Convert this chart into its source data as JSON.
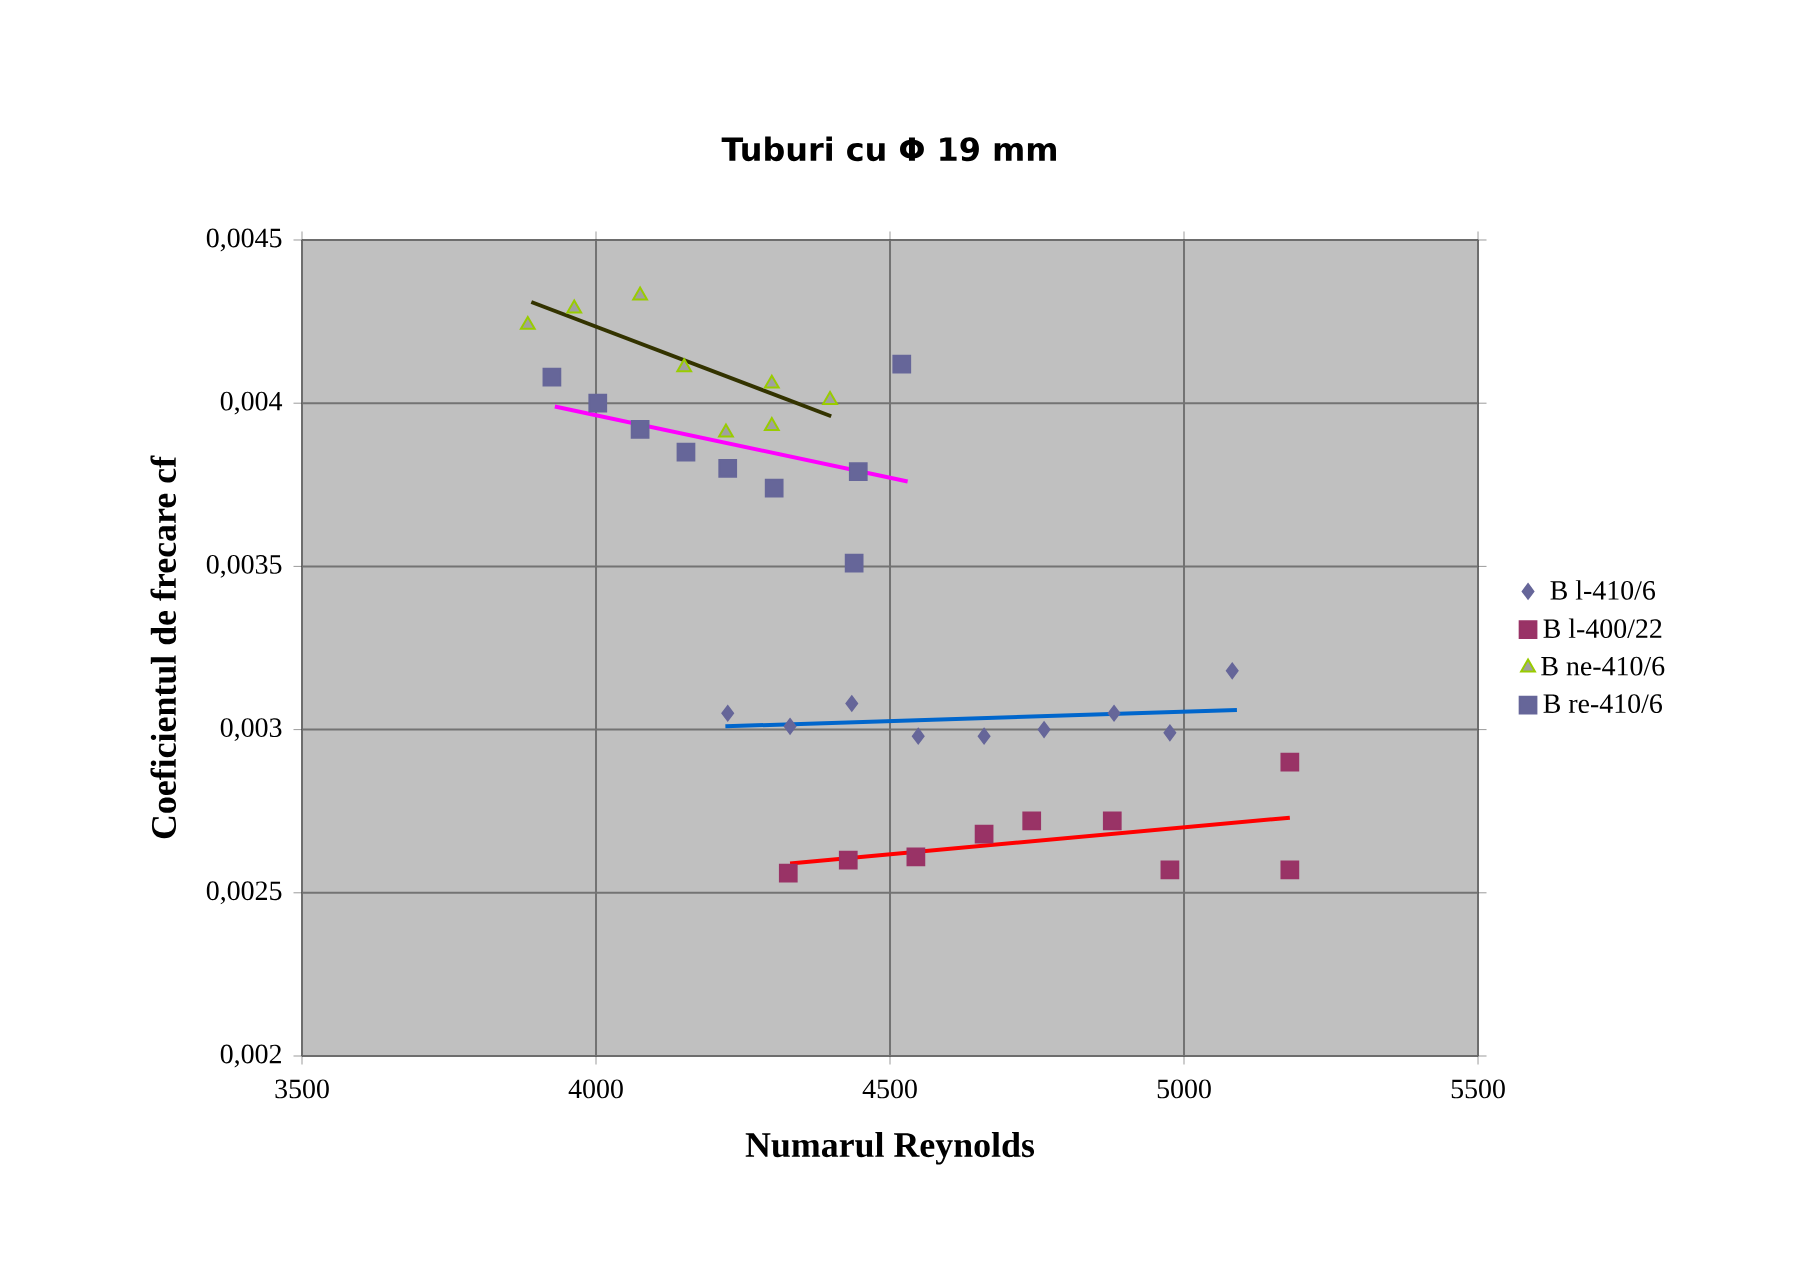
{
  "chart_data": {
    "type": "scatter",
    "title": "Tuburi cu Φ 19 mm",
    "xlabel": "Numarul Reynolds",
    "ylabel": "Coeficientul de frecare cf",
    "xlim": [
      3500,
      5500
    ],
    "xticks": [
      3500,
      4000,
      4500,
      5000,
      5500
    ],
    "ylim": [
      0.002,
      0.0045
    ],
    "yticks": [
      {
        "value": 0.002,
        "label": "0,002"
      },
      {
        "value": 0.0025,
        "label": "0,0025"
      },
      {
        "value": 0.003,
        "label": "0,003"
      },
      {
        "value": 0.0035,
        "label": "0,0035"
      },
      {
        "value": 0.004,
        "label": "0,004"
      },
      {
        "value": 0.0045,
        "label": "0,0045"
      }
    ],
    "grid": true,
    "legend": "right",
    "series": [
      {
        "name": "B l-410/6",
        "color": "#666699",
        "marker": "diamond",
        "x": [
          4224,
          4330,
          4435,
          4548,
          4660,
          4762,
          4881,
          4976,
          5082
        ],
        "values": [
          0.00305,
          0.00301,
          0.00308,
          0.00298,
          0.00298,
          0.003,
          0.00305,
          0.00299,
          0.00318
        ]
      },
      {
        "name": "B l-400/22",
        "color": "#993366",
        "marker": "square",
        "x": [
          4327,
          4429,
          4544,
          4660,
          4741,
          4878,
          4976,
          5180,
          5180
        ],
        "values": [
          0.00256,
          0.0026,
          0.00261,
          0.00268,
          0.00272,
          0.00272,
          0.00257,
          0.00257,
          0.0029
        ]
      },
      {
        "name": "B ne-410/6",
        "color": "#99cc00",
        "marker": "triangle",
        "x": [
          3884,
          3963,
          4075,
          4150,
          4221,
          4299,
          4299,
          4398
        ],
        "values": [
          0.00424,
          0.00429,
          0.00433,
          0.00411,
          0.00391,
          0.00393,
          0.00406,
          0.00401
        ]
      },
      {
        "name": "B re-410/6",
        "color": "#666699",
        "marker": "square",
        "x": [
          3925,
          4003,
          4075,
          4153,
          4224,
          4303,
          4446,
          4439,
          4520
        ],
        "values": [
          0.00408,
          0.004,
          0.00392,
          0.00385,
          0.0038,
          0.00374,
          0.00379,
          0.00351,
          0.00412
        ]
      },
      {
        "type": "line",
        "color": "#333300",
        "x": [
          3890,
          4400
        ],
        "values": [
          0.00431,
          0.00396
        ]
      },
      {
        "type": "line",
        "color": "#ff00ff",
        "x": [
          3930,
          4530
        ],
        "values": [
          0.00399,
          0.00376
        ]
      },
      {
        "type": "line",
        "color": "#0066cc",
        "x": [
          4220,
          5090
        ],
        "values": [
          0.00301,
          0.00306
        ]
      },
      {
        "type": "line",
        "color": "#ff0000",
        "x": [
          4330,
          5180
        ],
        "values": [
          0.00259,
          0.00273
        ]
      }
    ]
  }
}
